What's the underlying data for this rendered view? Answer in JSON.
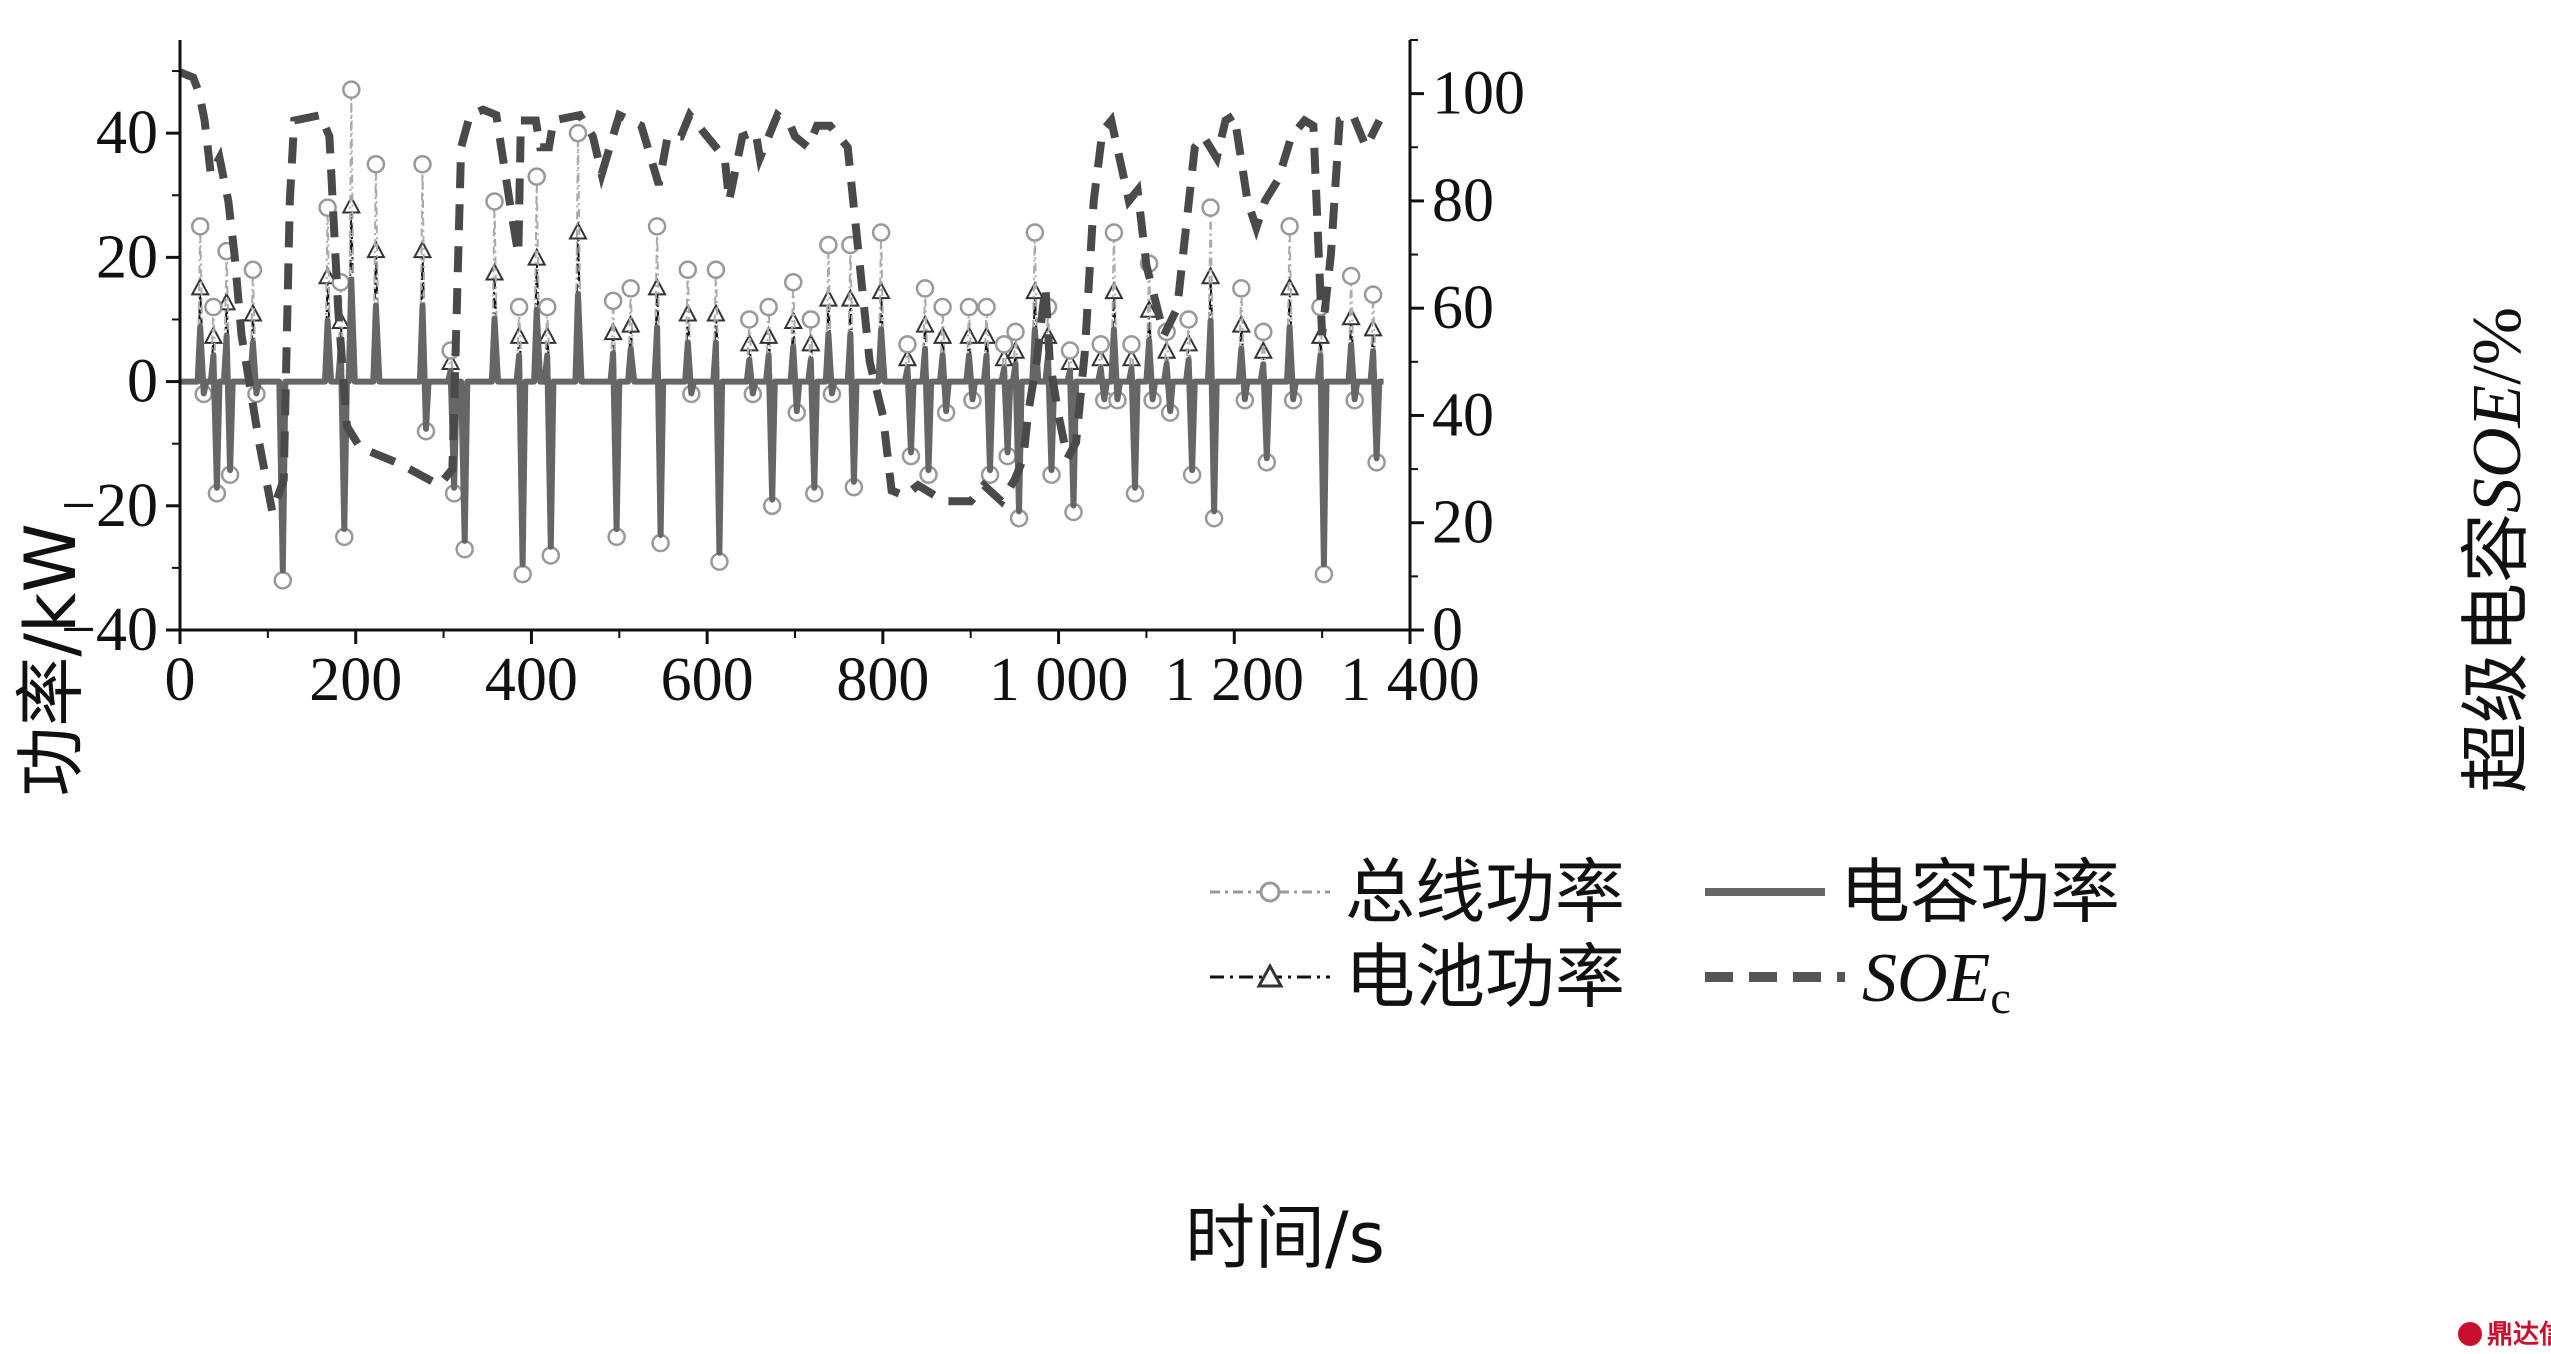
{
  "chart_data": {
    "type": "line",
    "xlabel": "时间/s",
    "ylabel_left": "功率/kW",
    "ylabel_right_prefix": "超级电容",
    "ylabel_right_italic": "SOE",
    "ylabel_right_suffix": "/%",
    "xlim": [
      0,
      1400
    ],
    "ylim_left": [
      -40,
      55
    ],
    "ylim_right": [
      0,
      110
    ],
    "x_ticks": [
      0,
      200,
      400,
      600,
      800,
      1000,
      1200,
      1400
    ],
    "x_tick_labels": [
      "0",
      "200",
      "400",
      "600",
      "800",
      "1 000",
      "1 200",
      "1 400"
    ],
    "y_left_ticks": [
      -40,
      -20,
      0,
      20,
      40
    ],
    "y_left_tick_labels": [
      "−40",
      "−20",
      "0",
      "20",
      "40"
    ],
    "y_right_ticks": [
      0,
      20,
      40,
      60,
      80,
      100
    ],
    "y_right_tick_labels": [
      "0",
      "20",
      "40",
      "60",
      "80",
      "100"
    ],
    "grid": false,
    "legend_position": "bottom-center",
    "legend": {
      "bus": "总线功率",
      "cap": "电容功率",
      "bat": "电池功率",
      "soe_main": "SOE",
      "soe_sub": "c"
    },
    "events": [
      {
        "t": 25,
        "peak": 25,
        "valley": -2
      },
      {
        "t": 40,
        "peak": 12,
        "valley": -18
      },
      {
        "t": 55,
        "peak": 21,
        "valley": -15
      },
      {
        "t": 85,
        "peak": 18,
        "valley": -2
      },
      {
        "t": 115,
        "peak": 0,
        "valley": -32
      },
      {
        "t": 170,
        "peak": 28,
        "valley": 0
      },
      {
        "t": 185,
        "peak": 16,
        "valley": -25
      },
      {
        "t": 197,
        "peak": 47,
        "valley": 0
      },
      {
        "t": 225,
        "peak": 35,
        "valley": 0
      },
      {
        "t": 278,
        "peak": 35,
        "valley": -8
      },
      {
        "t": 310,
        "peak": 5,
        "valley": -18
      },
      {
        "t": 322,
        "peak": 0,
        "valley": -27
      },
      {
        "t": 360,
        "peak": 29,
        "valley": 0
      },
      {
        "t": 388,
        "peak": 12,
        "valley": -31
      },
      {
        "t": 408,
        "peak": 33,
        "valley": 0
      },
      {
        "t": 420,
        "peak": 12,
        "valley": -28
      },
      {
        "t": 455,
        "peak": 40,
        "valley": 0
      },
      {
        "t": 495,
        "peak": 13,
        "valley": -25
      },
      {
        "t": 515,
        "peak": 15,
        "valley": 0
      },
      {
        "t": 545,
        "peak": 25,
        "valley": -26
      },
      {
        "t": 580,
        "peak": 18,
        "valley": -2
      },
      {
        "t": 612,
        "peak": 18,
        "valley": -29
      },
      {
        "t": 650,
        "peak": 10,
        "valley": -2
      },
      {
        "t": 672,
        "peak": 12,
        "valley": -20
      },
      {
        "t": 700,
        "peak": 16,
        "valley": -5
      },
      {
        "t": 720,
        "peak": 10,
        "valley": -18
      },
      {
        "t": 740,
        "peak": 22,
        "valley": -2
      },
      {
        "t": 765,
        "peak": 22,
        "valley": -17
      },
      {
        "t": 800,
        "peak": 24,
        "valley": 0
      },
      {
        "t": 830,
        "peak": 6,
        "valley": -12
      },
      {
        "t": 850,
        "peak": 15,
        "valley": -15
      },
      {
        "t": 870,
        "peak": 12,
        "valley": -5
      },
      {
        "t": 900,
        "peak": 12,
        "valley": -3
      },
      {
        "t": 920,
        "peak": 12,
        "valley": -15
      },
      {
        "t": 940,
        "peak": 6,
        "valley": -12
      },
      {
        "t": 953,
        "peak": 8,
        "valley": -22
      },
      {
        "t": 975,
        "peak": 24,
        "valley": 0
      },
      {
        "t": 990,
        "peak": 12,
        "valley": -15
      },
      {
        "t": 1015,
        "peak": 5,
        "valley": -21
      },
      {
        "t": 1050,
        "peak": 6,
        "valley": -3
      },
      {
        "t": 1065,
        "peak": 24,
        "valley": -3
      },
      {
        "t": 1085,
        "peak": 6,
        "valley": -18
      },
      {
        "t": 1105,
        "peak": 19,
        "valley": -3
      },
      {
        "t": 1125,
        "peak": 8,
        "valley": -5
      },
      {
        "t": 1150,
        "peak": 10,
        "valley": -15
      },
      {
        "t": 1175,
        "peak": 28,
        "valley": -22
      },
      {
        "t": 1210,
        "peak": 15,
        "valley": -3
      },
      {
        "t": 1235,
        "peak": 8,
        "valley": -13
      },
      {
        "t": 1265,
        "peak": 25,
        "valley": -3
      },
      {
        "t": 1300,
        "peak": 12,
        "valley": -31
      },
      {
        "t": 1335,
        "peak": 17,
        "valley": -3
      },
      {
        "t": 1360,
        "peak": 14,
        "valley": -13
      }
    ],
    "soe_points": [
      [
        0,
        104
      ],
      [
        15,
        103
      ],
      [
        22,
        100
      ],
      [
        28,
        95
      ],
      [
        35,
        85
      ],
      [
        45,
        88
      ],
      [
        55,
        80
      ],
      [
        62,
        70
      ],
      [
        70,
        55
      ],
      [
        80,
        45
      ],
      [
        90,
        35
      ],
      [
        105,
        22
      ],
      [
        118,
        28
      ],
      [
        125,
        80
      ],
      [
        130,
        95
      ],
      [
        160,
        96
      ],
      [
        170,
        92
      ],
      [
        180,
        60
      ],
      [
        190,
        38
      ],
      [
        205,
        34
      ],
      [
        250,
        31
      ],
      [
        295,
        27
      ],
      [
        310,
        30
      ],
      [
        315,
        60
      ],
      [
        320,
        90
      ],
      [
        330,
        96
      ],
      [
        345,
        97
      ],
      [
        360,
        96
      ],
      [
        375,
        80
      ],
      [
        385,
        70
      ],
      [
        388,
        95
      ],
      [
        405,
        95
      ],
      [
        410,
        90
      ],
      [
        420,
        90
      ],
      [
        425,
        95
      ],
      [
        455,
        96
      ],
      [
        470,
        92
      ],
      [
        480,
        85
      ],
      [
        500,
        96
      ],
      [
        525,
        94
      ],
      [
        545,
        83
      ],
      [
        555,
        92
      ],
      [
        570,
        92
      ],
      [
        580,
        96
      ],
      [
        590,
        94
      ],
      [
        620,
        88
      ],
      [
        625,
        80
      ],
      [
        640,
        92
      ],
      [
        655,
        93
      ],
      [
        660,
        88
      ],
      [
        670,
        92
      ],
      [
        680,
        96
      ],
      [
        695,
        94
      ],
      [
        700,
        92
      ],
      [
        715,
        90
      ],
      [
        725,
        94
      ],
      [
        740,
        94
      ],
      [
        760,
        90
      ],
      [
        785,
        50
      ],
      [
        800,
        40
      ],
      [
        810,
        26
      ],
      [
        825,
        25
      ],
      [
        840,
        27
      ],
      [
        870,
        24
      ],
      [
        900,
        24
      ],
      [
        915,
        27
      ],
      [
        935,
        24
      ],
      [
        950,
        28
      ],
      [
        960,
        32
      ],
      [
        965,
        40
      ],
      [
        975,
        50
      ],
      [
        985,
        64
      ],
      [
        990,
        50
      ],
      [
        1000,
        40
      ],
      [
        1010,
        32
      ],
      [
        1020,
        35
      ],
      [
        1030,
        52
      ],
      [
        1040,
        80
      ],
      [
        1050,
        93
      ],
      [
        1060,
        95
      ],
      [
        1080,
        80
      ],
      [
        1090,
        82
      ],
      [
        1100,
        68
      ],
      [
        1120,
        55
      ],
      [
        1135,
        60
      ],
      [
        1145,
        75
      ],
      [
        1155,
        90
      ],
      [
        1165,
        92
      ],
      [
        1180,
        88
      ],
      [
        1190,
        95
      ],
      [
        1200,
        96
      ],
      [
        1215,
        80
      ],
      [
        1225,
        75
      ],
      [
        1235,
        80
      ],
      [
        1250,
        84
      ],
      [
        1265,
        92
      ],
      [
        1280,
        95
      ],
      [
        1290,
        94
      ],
      [
        1300,
        55
      ],
      [
        1310,
        70
      ],
      [
        1320,
        95
      ],
      [
        1335,
        96
      ],
      [
        1350,
        90
      ],
      [
        1365,
        95
      ]
    ]
  },
  "watermark": "鼎达信"
}
